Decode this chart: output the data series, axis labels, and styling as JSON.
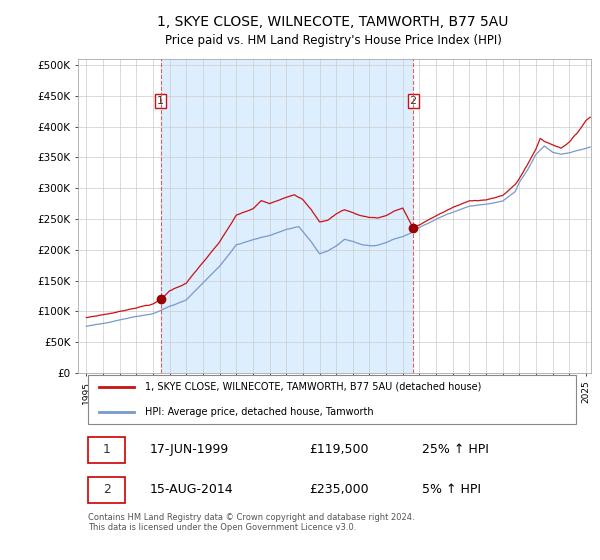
{
  "title": "1, SKYE CLOSE, WILNECOTE, TAMWORTH, B77 5AU",
  "subtitle": "Price paid vs. HM Land Registry's House Price Index (HPI)",
  "ytick_labels": [
    "£0",
    "£50K",
    "£100K",
    "£150K",
    "£200K",
    "£250K",
    "£300K",
    "£350K",
    "£400K",
    "£450K",
    "£500K"
  ],
  "yticks": [
    0,
    50000,
    100000,
    150000,
    200000,
    250000,
    300000,
    350000,
    400000,
    450000,
    500000
  ],
  "xlim_start": 1994.5,
  "xlim_end": 2025.3,
  "ylim_min": 0,
  "ylim_max": 510000,
  "sale1_date": 1999.46,
  "sale1_price": 119500,
  "sale2_date": 2014.62,
  "sale2_price": 235000,
  "red_line_color": "#cc1111",
  "blue_line_color": "#7799cc",
  "sale_marker_color": "#990000",
  "dashed_line_color": "#dd4444",
  "shade_color": "#ddeeff",
  "background_color": "#ffffff",
  "grid_color": "#cccccc",
  "title_fontsize": 10,
  "subtitle_fontsize": 8.5,
  "legend_entry1": "1, SKYE CLOSE, WILNECOTE, TAMWORTH, B77 5AU (detached house)",
  "legend_entry2": "HPI: Average price, detached house, Tamworth",
  "table_row1": [
    "1",
    "17-JUN-1999",
    "£119,500",
    "25% ↑ HPI"
  ],
  "table_row2": [
    "2",
    "15-AUG-2014",
    "£235,000",
    "5% ↑ HPI"
  ],
  "footer": "Contains HM Land Registry data © Crown copyright and database right 2024.\nThis data is licensed under the Open Government Licence v3.0."
}
